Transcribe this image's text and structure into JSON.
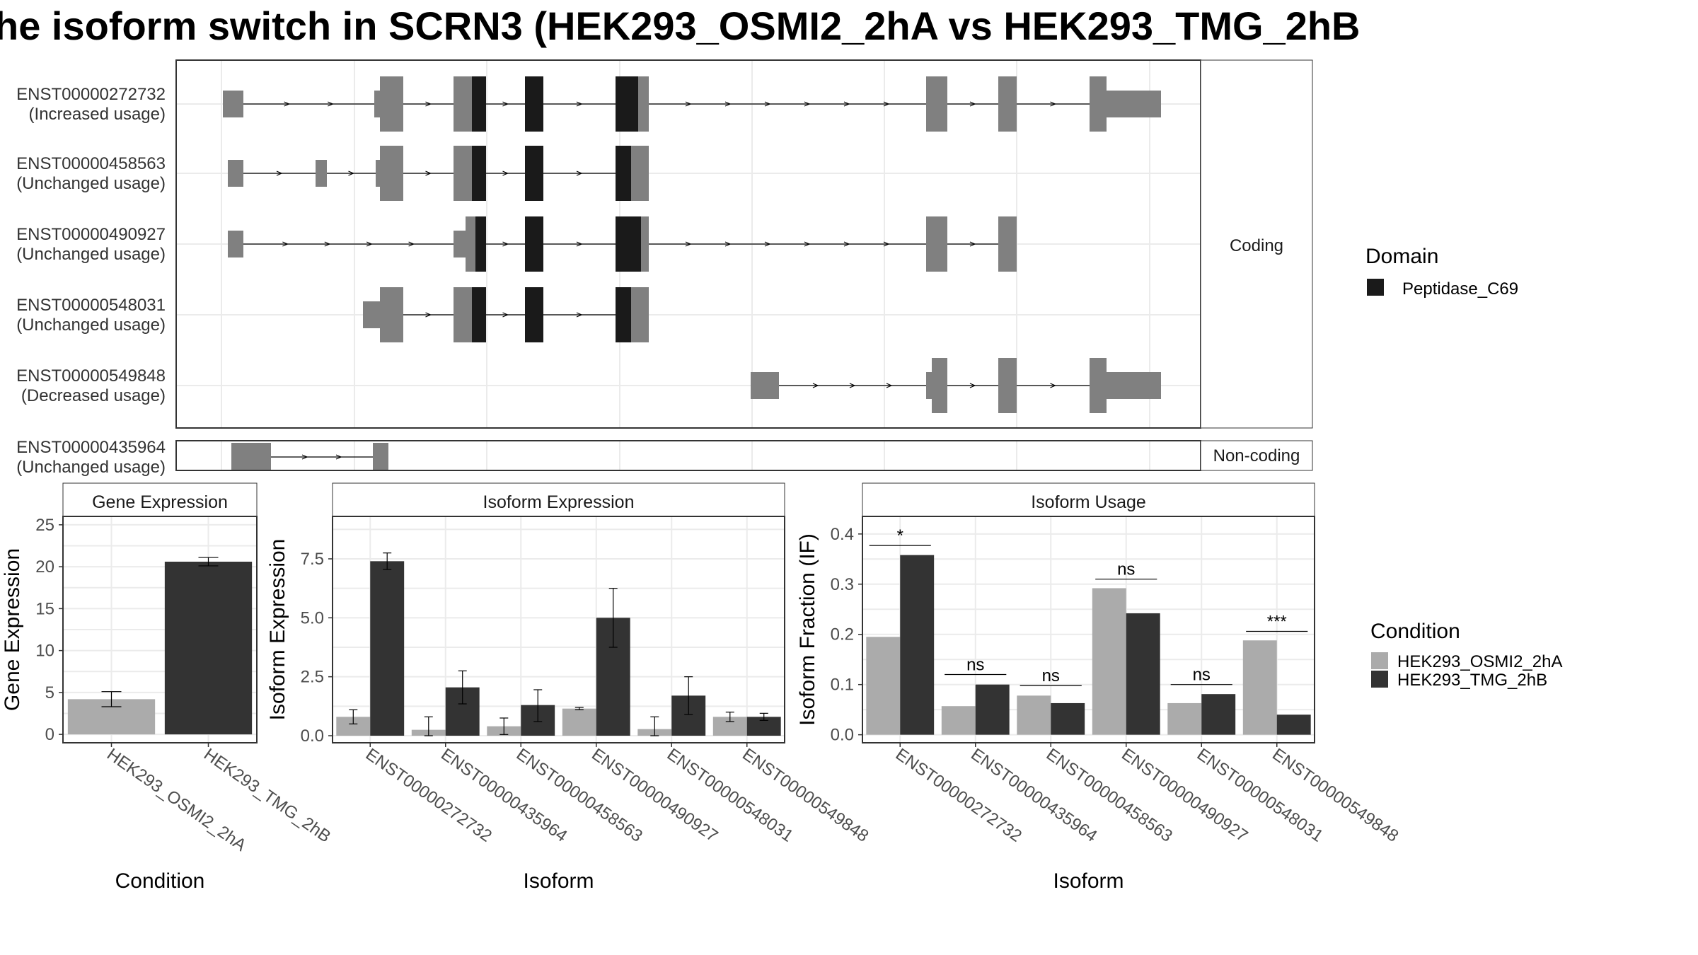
{
  "title": "he isoform switch in SCRN3 (HEK293_OSMI2_2hA vs HEK293_TMG_2hB",
  "colors": {
    "exon": "#808080",
    "domain": "#1a1a1a",
    "cond_a": "#ababab",
    "cond_b": "#333333",
    "panel_bg": "#ffffff",
    "grid": "#ebebeb",
    "strip_bg": "#ffffff",
    "border": "#333333"
  },
  "structure": {
    "coding_strip": "Coding",
    "noncoding_strip": "Non-coding",
    "domain_legend_title": "Domain",
    "domain_legend_item": "Peptidase_C69",
    "coding": [
      {
        "id": "ENST00000272732",
        "usage": "(Increased usage)"
      },
      {
        "id": "ENST00000458563",
        "usage": "(Unchanged usage)"
      },
      {
        "id": "ENST00000490927",
        "usage": "(Unchanged usage)"
      },
      {
        "id": "ENST00000548031",
        "usage": "(Unchanged usage)"
      },
      {
        "id": "ENST00000549848",
        "usage": "(Decreased usage)"
      }
    ],
    "noncoding": [
      {
        "id": "ENST00000435964",
        "usage": "(Unchanged usage)"
      }
    ]
  },
  "condition_legend": {
    "title": "Condition",
    "items": [
      "HEK293_OSMI2_2hA",
      "HEK293_TMG_2hB"
    ]
  },
  "chart_data": [
    {
      "type": "bar",
      "title": "Gene Expression",
      "xlabel": "Condition",
      "ylabel": "Gene Expression",
      "ylim": [
        -1,
        26
      ],
      "yticks": [
        0,
        5,
        10,
        15,
        20,
        25
      ],
      "ytick_labels": [
        "0",
        "5",
        "10",
        "15",
        "20",
        "25"
      ],
      "categories": [
        "HEK293_OSMI2_2hA",
        "HEK293_TMG_2hB"
      ],
      "values": [
        4.2,
        20.6
      ],
      "errors": [
        [
          3.3,
          5.1
        ],
        [
          20.1,
          21.1
        ]
      ]
    },
    {
      "type": "bar",
      "title": "Isoform Expression",
      "xlabel": "Isoform",
      "ylabel": "Isoform Expression",
      "ylim": [
        -0.3,
        9.3
      ],
      "yticks": [
        0,
        2.5,
        5,
        7.5
      ],
      "ytick_labels": [
        "0.0",
        "2.5",
        "5.0",
        "7.5"
      ],
      "categories": [
        "ENST00000272732",
        "ENST00000435964",
        "ENST00000458563",
        "ENST00000490927",
        "ENST00000548031",
        "ENST00000549848"
      ],
      "series": [
        {
          "name": "HEK293_OSMI2_2hA",
          "values": [
            0.8,
            0.25,
            0.4,
            1.15,
            0.28,
            0.8
          ],
          "errors": [
            [
              0.5,
              1.1
            ],
            [
              0.0,
              0.8
            ],
            [
              0.05,
              0.75
            ],
            [
              1.1,
              1.2
            ],
            [
              0.0,
              0.8
            ],
            [
              0.6,
              1.0
            ]
          ]
        },
        {
          "name": "HEK293_TMG_2hB",
          "values": [
            7.4,
            2.05,
            1.3,
            5.0,
            1.7,
            0.8
          ],
          "errors": [
            [
              7.05,
              7.75
            ],
            [
              1.35,
              2.75
            ],
            [
              0.6,
              1.95
            ],
            [
              3.75,
              6.25
            ],
            [
              0.9,
              2.5
            ],
            [
              0.65,
              0.95
            ]
          ]
        }
      ]
    },
    {
      "type": "bar",
      "title": "Isoform Usage",
      "xlabel": "Isoform",
      "ylabel": "Isoform Fraction (IF)",
      "ylim": [
        -0.016,
        0.435
      ],
      "yticks": [
        0,
        0.1,
        0.2,
        0.3,
        0.4
      ],
      "ytick_labels": [
        "0.0",
        "0.1",
        "0.2",
        "0.3",
        "0.4"
      ],
      "categories": [
        "ENST00000272732",
        "ENST00000435964",
        "ENST00000458563",
        "ENST00000490927",
        "ENST00000548031",
        "ENST00000549848"
      ],
      "series": [
        {
          "name": "HEK293_OSMI2_2hA",
          "values": [
            0.195,
            0.057,
            0.078,
            0.292,
            0.063,
            0.188
          ]
        },
        {
          "name": "HEK293_TMG_2hB",
          "values": [
            0.358,
            0.1,
            0.063,
            0.242,
            0.081,
            0.04
          ]
        }
      ],
      "significance": [
        "*",
        "ns",
        "ns",
        "ns",
        "ns",
        "***"
      ],
      "significance_y": [
        0.377,
        0.12,
        0.098,
        0.31,
        0.1,
        0.206
      ]
    }
  ]
}
